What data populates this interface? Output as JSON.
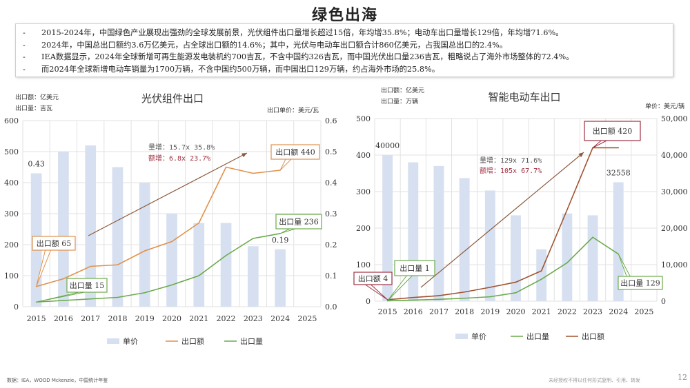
{
  "page_title": "绿色出海",
  "bullets": [
    "2015-2024年，中国绿色产业展现出强劲的全球发展前景，光伏组件出口量增长超过15倍，年均增35.8%；电动车出口量增长129倍，年均增71.6%。",
    "2024年，中国总出口额约3.6万亿美元，占全球出口额的14.6%；其中，光伏与电动车出口额合计860亿美元，占我国总出口的2.4%。",
    "IEA数据显示，2024年全球新增可再生能源发电装机约700吉瓦，不含中国约326吉瓦，而中国光伏出口量236吉瓦，粗略说占了海外市场整体的72.4%。",
    "而2024年全球新增电动车销量为1700万辆，不含中国约500万辆，而中国出口129万辆，约占海外市场的25.8%。"
  ],
  "footer": {
    "source": "数据：IEA，WOOD Mckenzie，中国统计年鉴",
    "note": "未经授权不得以任何形式复制、引用、转发",
    "page_number": "12"
  },
  "colors": {
    "bar": "#d6e0f0",
    "value_line": "#e0914a",
    "volume_line": "#6aaa4a",
    "value_line_ev": "#a0522d",
    "grid": "#e2e2e2",
    "arrow": "#8b5a3c",
    "red": "#a03040"
  },
  "chart_data": [
    {
      "type": "bar+line",
      "title": "光伏组件出口",
      "unit_left": [
        "出口额：亿美元",
        "出口量：吉瓦"
      ],
      "unit_right": "出口单价：美元/瓦",
      "categories": [
        "2015",
        "2016",
        "2017",
        "2018",
        "2019",
        "2020",
        "2021",
        "2022",
        "2023",
        "2024",
        "2025"
      ],
      "ylim_left": [
        0,
        600
      ],
      "yticks_left": [
        "0",
        "100",
        "200",
        "300",
        "400",
        "500",
        "600"
      ],
      "ylim_right": [
        0,
        0.6
      ],
      "yticks_right": [
        "0.0",
        "0.1",
        "0.2",
        "0.3",
        "0.4",
        "0.5",
        "0.6"
      ],
      "grid": true,
      "series": [
        {
          "name": "单价",
          "kind": "bar",
          "axis": "right",
          "values": [
            0.43,
            0.5,
            0.52,
            0.45,
            0.4,
            0.3,
            0.27,
            0.27,
            0.195,
            0.185,
            null
          ]
        },
        {
          "name": "出口额",
          "kind": "line",
          "axis": "left",
          "values": [
            65,
            90,
            130,
            135,
            180,
            210,
            270,
            450,
            430,
            440,
            null
          ]
        },
        {
          "name": "出口量",
          "kind": "line",
          "axis": "left",
          "values": [
            15,
            20,
            25,
            30,
            45,
            70,
            100,
            165,
            220,
            236,
            null
          ]
        }
      ],
      "legend": [
        "单价",
        "出口额",
        "出口量"
      ],
      "legend_position": "bottom",
      "data_labels": [
        "0.43",
        "0.19"
      ],
      "callouts": [
        "出口额 65",
        "出口量 15",
        "出口额 440",
        "出口量 236"
      ],
      "growth": [
        "量增：15.7x 35.8%",
        "额增：6.8x  23.7%"
      ]
    },
    {
      "type": "bar+line",
      "title": "智能电动车出口",
      "unit_left": [
        "出口额：亿美元",
        "出口量：万辆"
      ],
      "unit_right": "单价：美元/辆",
      "categories": [
        "2015",
        "2016",
        "2017",
        "2018",
        "2019",
        "2020",
        "2021",
        "2022",
        "2023",
        "2024",
        "2025"
      ],
      "ylim_left": [
        0,
        500
      ],
      "yticks_left": [
        "0",
        "100",
        "200",
        "300",
        "400",
        "500"
      ],
      "ylim_right": [
        0,
        50000
      ],
      "yticks_right": [
        "0",
        "10,000",
        "20,000",
        "30,000",
        "40,000",
        "50,000"
      ],
      "grid": true,
      "series": [
        {
          "name": "单价",
          "kind": "bar",
          "axis": "right",
          "values": [
            40000,
            38000,
            37000,
            33700,
            30300,
            23500,
            14200,
            24000,
            23500,
            32558,
            null
          ]
        },
        {
          "name": "出口量",
          "kind": "line",
          "axis": "left",
          "values": [
            1,
            3,
            5,
            8,
            12,
            23,
            60,
            105,
            175,
            129,
            null
          ]
        },
        {
          "name": "出口额",
          "kind": "line",
          "axis": "left",
          "values": [
            4,
            10,
            15,
            25,
            38,
            52,
            83,
            250,
            420,
            420,
            null
          ]
        }
      ],
      "legend": [
        "单价",
        "出口量",
        "出口额"
      ],
      "legend_position": "bottom",
      "data_labels": [
        "40000",
        "32558"
      ],
      "callouts": [
        "出口额 420",
        "出口量 1",
        "出口额 4",
        "出口量 129"
      ],
      "growth": [
        "量增：129x 71.6%",
        "额增：105x 67.7%"
      ]
    }
  ]
}
